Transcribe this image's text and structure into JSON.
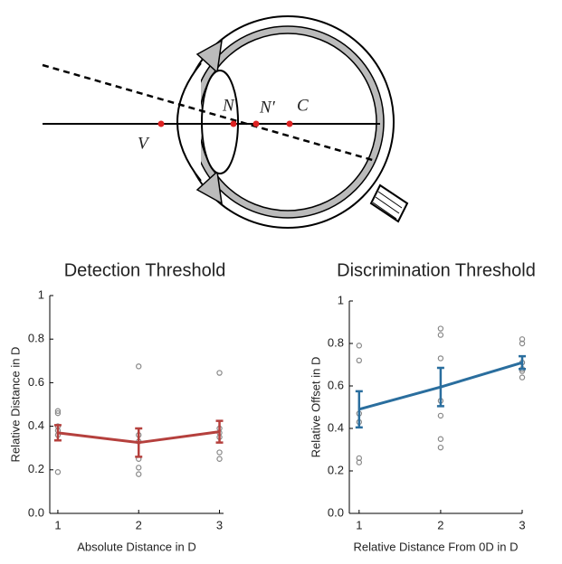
{
  "diagram": {
    "labels": [
      "V",
      "N",
      "N′",
      "C"
    ]
  },
  "chart_data": [
    {
      "type": "line",
      "title": "Detection Threshold",
      "xlabel": "Absolute Distance in D",
      "ylabel": "Relative Distance  in D",
      "x": [
        1,
        2,
        3
      ],
      "xlim": [
        0.9,
        3.05
      ],
      "xticks": [
        1,
        2,
        3
      ],
      "ylim": [
        0,
        1
      ],
      "yticks": [
        {
          "value": 0,
          "label": "0.0"
        },
        0.2,
        0.4,
        0.6,
        0.8,
        1
      ],
      "series": [
        {
          "color": "#b5403d",
          "values": [
            0.37,
            0.325,
            0.375
          ],
          "errors": [
            0.035,
            0.065,
            0.05
          ]
        }
      ],
      "points": {
        "color": "#888888",
        "x": [
          1,
          1,
          1,
          1,
          1,
          1,
          2,
          2,
          2,
          2,
          2,
          2,
          3,
          3,
          3,
          3,
          3,
          3
        ],
        "y": [
          0.19,
          0.36,
          0.38,
          0.4,
          0.46,
          0.47,
          0.18,
          0.21,
          0.25,
          0.33,
          0.36,
          0.675,
          0.25,
          0.28,
          0.35,
          0.37,
          0.39,
          0.645
        ]
      }
    },
    {
      "type": "line",
      "title": "Discrimination Threshold",
      "xlabel": "Relative Distance From 0D in D",
      "ylabel": "Relative Offset in D",
      "x": [
        1,
        2,
        3
      ],
      "xlim": [
        0.88,
        3.0
      ],
      "xticks": [
        1,
        2,
        3
      ],
      "ylim": [
        0,
        1
      ],
      "yticks": [
        {
          "value": 0,
          "label": "0.0"
        },
        0.2,
        0.4,
        0.6,
        0.8,
        1
      ],
      "series": [
        {
          "color": "#2a6e9e",
          "values": [
            0.49,
            0.595,
            0.71
          ],
          "errors": [
            0.085,
            0.09,
            0.03
          ]
        }
      ],
      "points": {
        "color": "#888888",
        "x": [
          1,
          1,
          1,
          1,
          1,
          1,
          2,
          2,
          2,
          2,
          2,
          2,
          2,
          3,
          3,
          3,
          3,
          3,
          3
        ],
        "y": [
          0.24,
          0.26,
          0.43,
          0.47,
          0.72,
          0.79,
          0.31,
          0.35,
          0.46,
          0.53,
          0.73,
          0.84,
          0.87,
          0.64,
          0.67,
          0.68,
          0.71,
          0.8,
          0.82
        ]
      }
    }
  ]
}
